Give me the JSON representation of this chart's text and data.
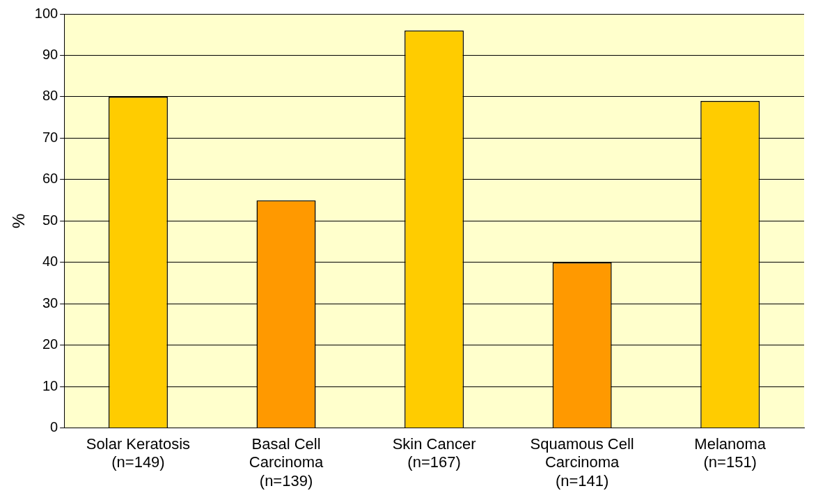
{
  "chart_data": {
    "type": "bar",
    "ylabel": "%",
    "categories": [
      "Solar Keratosis\n(n=149)",
      "Basal Cell\nCarcinoma\n(n=139)",
      "Skin Cancer\n(n=167)",
      "Squamous Cell\nCarcinoma\n(n=141)",
      "Melanoma\n(n=151)"
    ],
    "values": [
      80,
      55,
      96,
      40,
      79
    ],
    "colors": [
      "#ffcc00",
      "#ff9900",
      "#ffcc00",
      "#ff9900",
      "#ffcc00"
    ],
    "ylim": [
      0,
      100
    ],
    "yticks": [
      0,
      10,
      20,
      30,
      40,
      50,
      60,
      70,
      80,
      90,
      100
    ],
    "grid": "y",
    "legend": false
  }
}
